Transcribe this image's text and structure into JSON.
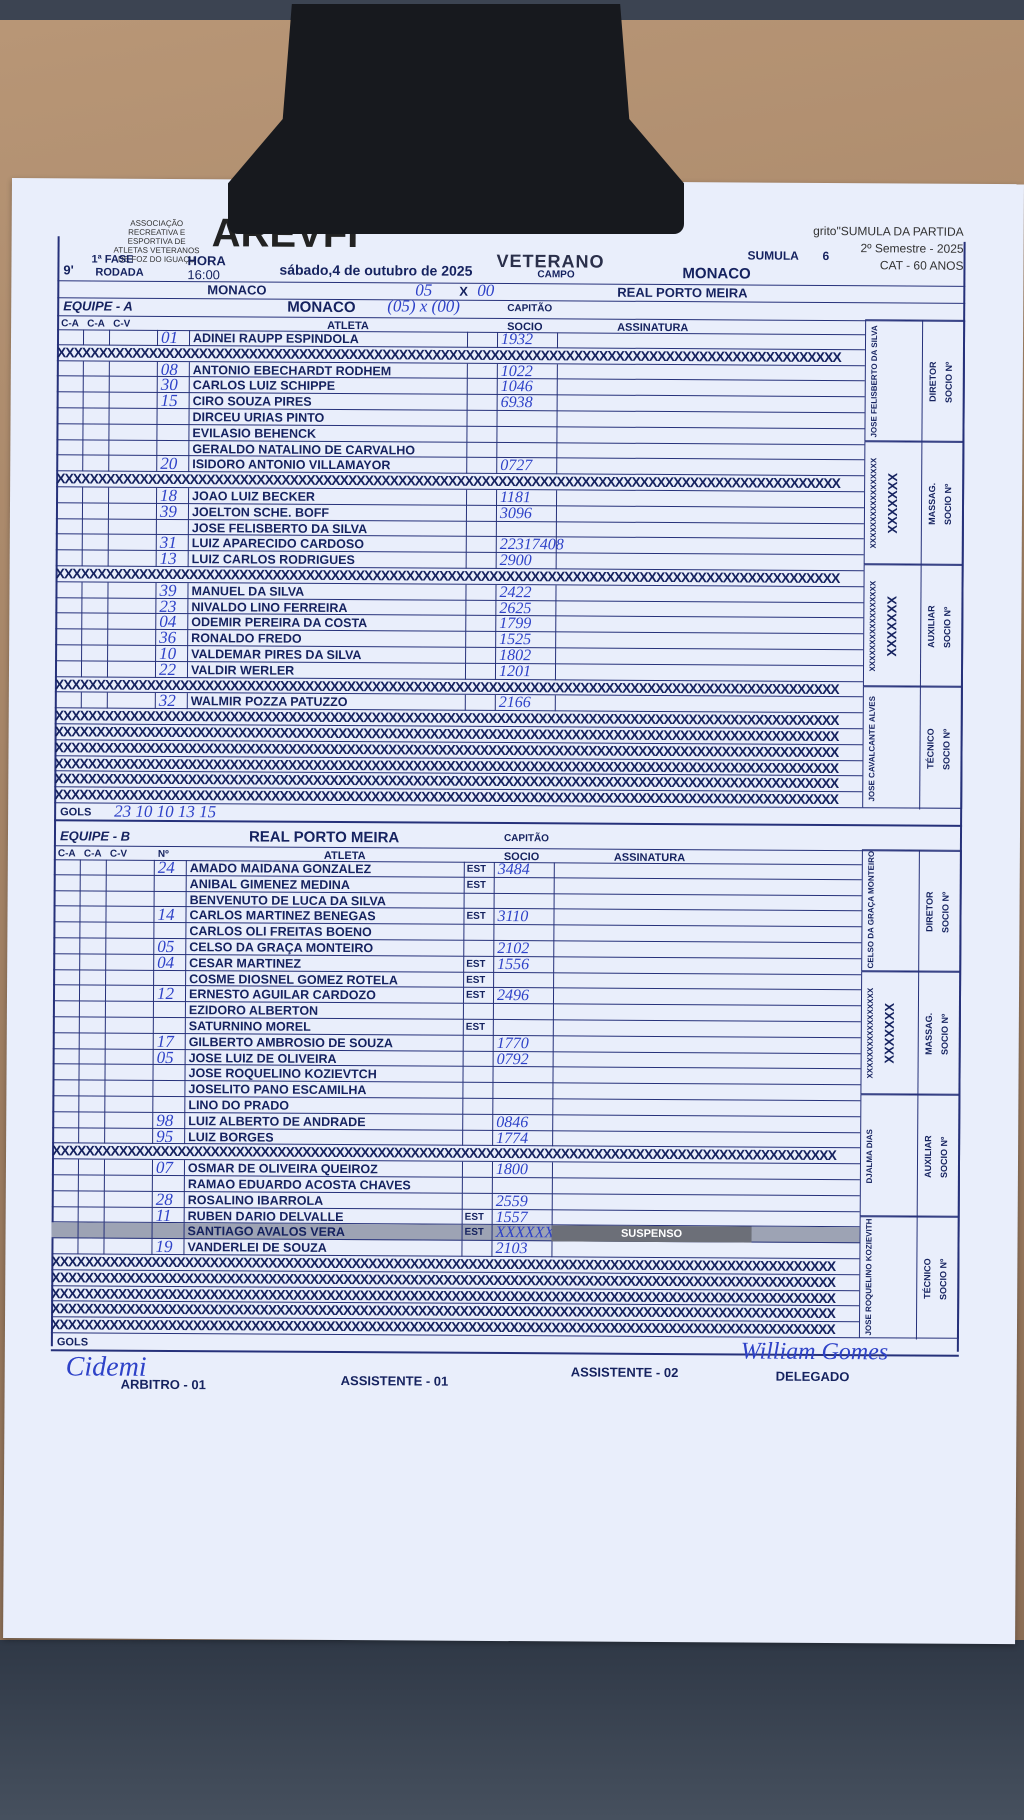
{
  "header": {
    "logo_text": "ASSOCIAÇÃO RECREATIVA E ESPORTIVA DE ATLETAS VETERANOS DE FOZ DO IGUAÇU",
    "logo_big": "AREVFI",
    "veterano": "VETERANO",
    "title": "grito\"SUMULA DA PARTIDA",
    "semester": "2º Semestre - 2025",
    "category": "CAT - 60 ANOS",
    "sumula_label": "SUMULA",
    "sumula_number": "6",
    "rodada_number": "9'",
    "fase": "1ª FASE",
    "rodada_label": "RODADA",
    "hora_label": "HORA",
    "hora": "16:00",
    "date": "sábado,4 de outubro de 2025",
    "campo_label": "CAMPO",
    "campo": "MONACO",
    "home": "MONACO",
    "away": "REAL PORTO MEIRA",
    "score_x": "X",
    "score_home_hand": "05",
    "score_away_hand": "00"
  },
  "colors": {
    "ink": "#15225f",
    "pen": "#2e42c8",
    "paper": "#e9eefb"
  },
  "team_a": {
    "equipe_label": "EQUIPE - A",
    "name": "MONACO",
    "score_hand": "(05) x (00)",
    "capitao_label": "CAPITÃO",
    "cols": {
      "ca1": "C-A",
      "ca2": "C-A",
      "cv": "C-V",
      "atleta": "ATLETA",
      "socio": "SOCIO",
      "assinatura": "ASSINATURA"
    },
    "rows": [
      {
        "num": "01",
        "name": "ADINEI RAUPP ESPINDOLA",
        "est": "",
        "socio": "1932"
      },
      {
        "x": true
      },
      {
        "num": "08",
        "name": "ANTONIO EBECHARDT RODHEM",
        "est": "",
        "socio": "1022"
      },
      {
        "num": "30",
        "name": "CARLOS LUIZ SCHIPPE",
        "est": "",
        "socio": "1046"
      },
      {
        "num": "15",
        "name": "CIRO SOUZA PIRES",
        "est": "",
        "socio": "6938"
      },
      {
        "num": "",
        "name": "DIRCEU URIAS PINTO",
        "est": "",
        "socio": ""
      },
      {
        "num": "",
        "name": "EVILASIO BEHENCK",
        "est": "",
        "socio": ""
      },
      {
        "num": "",
        "name": "GERALDO NATALINO DE CARVALHO",
        "est": "",
        "socio": ""
      },
      {
        "num": "20",
        "name": "ISIDORO ANTONIO VILLAMAYOR",
        "est": "",
        "socio": "0727"
      },
      {
        "x": true
      },
      {
        "num": "18",
        "name": "JOAO LUIZ BECKER",
        "est": "",
        "socio": "1181"
      },
      {
        "num": "39",
        "name": "JOELTON  SCHE. BOFF",
        "est": "",
        "socio": "3096"
      },
      {
        "num": "",
        "name": "JOSE FELISBERTO DA SILVA",
        "est": "",
        "socio": ""
      },
      {
        "num": "31",
        "name": "LUIZ APARECIDO CARDOSO",
        "est": "",
        "socio": "22317408"
      },
      {
        "num": "13",
        "name": "LUIZ CARLOS RODRIGUES",
        "est": "",
        "socio": "2900"
      },
      {
        "x": true
      },
      {
        "num": "39",
        "name": "MANUEL DA SILVA",
        "est": "",
        "socio": "2422"
      },
      {
        "num": "23",
        "name": "NIVALDO LINO FERREIRA",
        "est": "",
        "socio": "2625"
      },
      {
        "num": "04",
        "name": "ODEMIR PEREIRA DA COSTA",
        "est": "",
        "socio": "1799"
      },
      {
        "num": "36",
        "name": "RONALDO FREDO",
        "est": "",
        "socio": "1525"
      },
      {
        "num": "10",
        "name": "VALDEMAR PIRES DA SILVA",
        "est": "",
        "socio": "1802"
      },
      {
        "num": "22",
        "name": "VALDIR WERLER",
        "est": "",
        "socio": "1201"
      },
      {
        "x": true
      },
      {
        "num": "32",
        "name": "WALMIR POZZA PATUZZO",
        "est": "",
        "socio": "2166"
      },
      {
        "x": true
      },
      {
        "x": true
      },
      {
        "x": true
      },
      {
        "x": true
      },
      {
        "x": true
      },
      {
        "x": true
      }
    ],
    "gols_label": "GOLS",
    "gols_hand": "23  10  10  13  15",
    "staff": [
      {
        "role": "DIRETOR",
        "socio": "SOCIO Nº",
        "name": "JOSE FELISBERTO DA SILVA"
      },
      {
        "role": "MASSAG.",
        "socio": "SOCIO Nº",
        "name": "XXXXXXXXXXXXXXXXX",
        "mark": "XXXXXXX"
      },
      {
        "role": "AUXILIAR",
        "socio": "SOCIO Nº",
        "name": "XXXXXXXXXXXXXXXXX",
        "mark": "XXXXXXX"
      },
      {
        "role": "TÉCNICO",
        "socio": "SOCIO Nº",
        "name": "JOSE CAVALCANTE ALVES"
      }
    ]
  },
  "team_b": {
    "equipe_label": "EQUIPE - B",
    "name": "REAL PORTO MEIRA",
    "capitao_label": "CAPITÃO",
    "cols": {
      "ca1": "C-A",
      "ca2": "C-A",
      "cv": "C-V",
      "num": "Nº",
      "atleta": "ATLETA",
      "socio": "SOCIO",
      "assinatura": "ASSINATURA"
    },
    "rows": [
      {
        "num": "24",
        "name": "AMADO MAIDANA GONZALEZ",
        "est": "EST",
        "socio": "3484"
      },
      {
        "num": "",
        "name": "ANIBAL GIMENEZ MEDINA",
        "est": "EST",
        "socio": ""
      },
      {
        "num": "",
        "name": "BENVENUTO DE LUCA DA SILVA",
        "est": "",
        "socio": ""
      },
      {
        "num": "14",
        "name": "CARLOS MARTINEZ BENEGAS",
        "est": "EST",
        "socio": "3110"
      },
      {
        "num": "",
        "name": "CARLOS OLI FREITAS BOENO",
        "est": "",
        "socio": ""
      },
      {
        "num": "05",
        "name": "CELSO DA GRAÇA MONTEIRO",
        "est": "",
        "socio": "2102"
      },
      {
        "num": "04",
        "name": "CESAR MARTINEZ",
        "est": "EST",
        "socio": "1556"
      },
      {
        "num": "",
        "name": "COSME DIOSNEL GOMEZ ROTELA",
        "est": "EST",
        "socio": ""
      },
      {
        "num": "12",
        "name": "ERNESTO AGUILAR CARDOZO",
        "est": "EST",
        "socio": "2496"
      },
      {
        "num": "",
        "name": "EZIDORO ALBERTON",
        "est": "",
        "socio": ""
      },
      {
        "num": "",
        "name": "SATURNINO MOREL",
        "est": "EST",
        "socio": ""
      },
      {
        "num": "17",
        "name": "GILBERTO AMBROSIO DE SOUZA",
        "est": "",
        "socio": "1770"
      },
      {
        "num": "05",
        "name": "JOSE LUIZ DE OLIVEIRA",
        "est": "",
        "socio": "0792"
      },
      {
        "num": "",
        "name": "JOSE ROQUELINO KOZIEVTCH",
        "est": "",
        "socio": ""
      },
      {
        "num": "",
        "name": "JOSELITO PANO ESCAMILHA",
        "est": "",
        "socio": ""
      },
      {
        "num": "",
        "name": "LINO DO PRADO",
        "est": "",
        "socio": ""
      },
      {
        "num": "98",
        "name": "LUIZ ALBERTO DE ANDRADE",
        "est": "",
        "socio": "0846"
      },
      {
        "num": "95",
        "name": "LUIZ BORGES",
        "est": "",
        "socio": "1774"
      },
      {
        "x": true
      },
      {
        "num": "07",
        "name": "OSMAR DE OLIVEIRA QUEIROZ",
        "est": "",
        "socio": "1800"
      },
      {
        "num": "",
        "name": "RAMAO EDUARDO ACOSTA CHAVES",
        "est": "",
        "socio": ""
      },
      {
        "num": "28",
        "name": "ROSALINO IBARROLA",
        "est": "",
        "socio": "2559"
      },
      {
        "num": "11",
        "name": "RUBEN DARIO DELVALLE",
        "est": "EST",
        "socio": "1557"
      },
      {
        "num": "",
        "name": "SANTIAGO AVALOS VERA",
        "est": "EST",
        "socio": "XXXXXX",
        "status": "SUSPENSO"
      },
      {
        "num": "19",
        "name": "VANDERLEI DE SOUZA",
        "est": "",
        "socio": "2103"
      },
      {
        "x": true
      },
      {
        "x": true
      },
      {
        "x": true
      },
      {
        "x": true
      },
      {
        "x": true
      }
    ],
    "gols_label": "GOLS",
    "staff": [
      {
        "role": "DIRETOR",
        "socio": "SOCIO Nº",
        "name": "CELSO DA GRAÇA MONTEIRO"
      },
      {
        "role": "MASSAG.",
        "socio": "SOCIO Nº",
        "name": "XXXXXXXXXXXXXXXXX",
        "mark": "XXXXXXX"
      },
      {
        "role": "AUXILIAR",
        "socio": "SOCIO Nº",
        "name": "DJALMA DIAS"
      },
      {
        "role": "TÉCNICO",
        "socio": "SOCIO Nº",
        "name": "JOSE ROQUELINO KOZIEVITH"
      }
    ]
  },
  "signatures": {
    "arbitro": "ARBITRO - 01",
    "assistente1": "ASSISTENTE - 01",
    "assistente2": "ASSISTENTE - 02",
    "delegado": "DELEGADO"
  },
  "x_fill": "XXXXXXXXXXXXXXXXXXXXXXXXXXXXXXXXXXXXXXXXXXXXXXXXXXXXXXXXXXXXXXXXXXXXXXXXXXXXXXXXXXXXXXXXXXXXXX"
}
